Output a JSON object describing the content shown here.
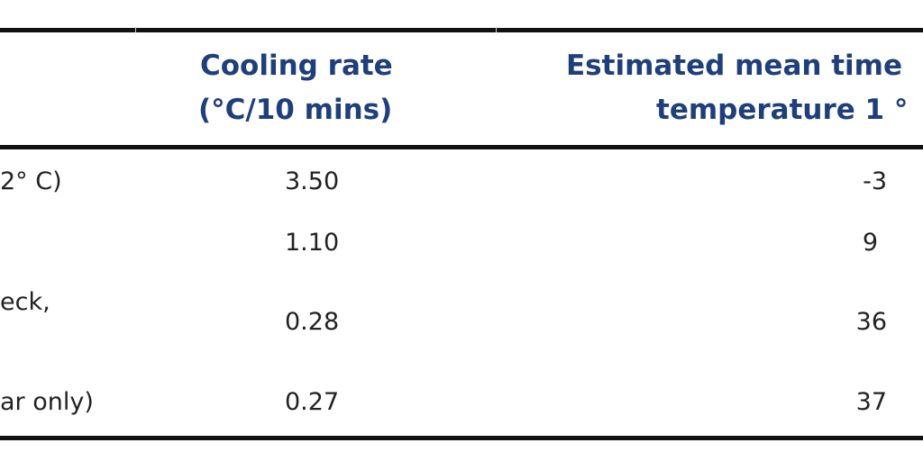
{
  "header": {
    "columns": [
      {
        "lines": [
          "Cooling rate",
          "(°C/10 mins)"
        ]
      },
      {
        "lines": [
          "Estimated mean time",
          "temperature 1 °"
        ]
      }
    ]
  },
  "rows": [
    {
      "label": [
        "2° C)"
      ],
      "cooling": "3.50",
      "time": "-3"
    },
    {
      "label": [],
      "cooling": "1.10",
      "time": "9"
    },
    {
      "label": [
        "eck,"
      ],
      "cooling": "0.28",
      "time": "36"
    },
    {
      "label": [
        "ar only)"
      ],
      "cooling": "0.27",
      "time": "37"
    }
  ]
}
